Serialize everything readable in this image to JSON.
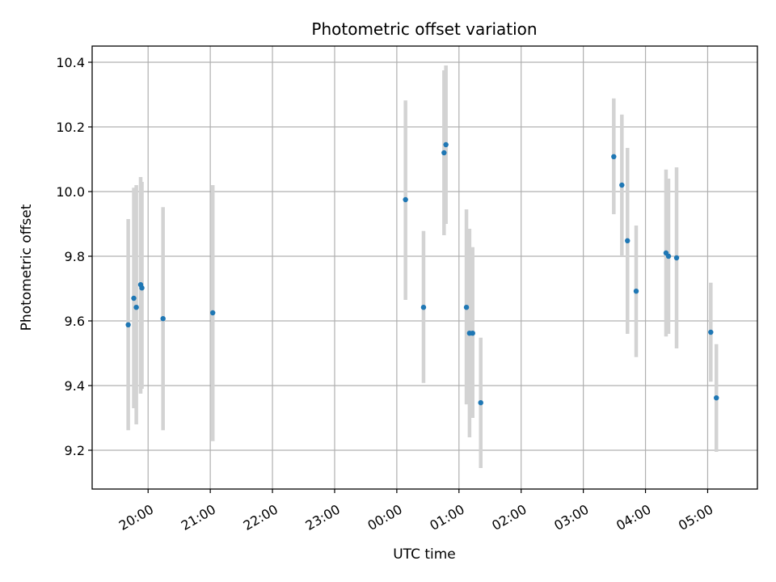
{
  "chart_data": {
    "type": "scatter",
    "title": "Photometric offset variation",
    "xlabel": "UTC time",
    "ylabel": "Photometric offset",
    "x_unit": "hours (UTC, continuing past midnight)",
    "xlim": [
      19.1,
      29.8
    ],
    "ylim": [
      9.08,
      10.45
    ],
    "grid": true,
    "x_ticks": [
      {
        "value": 20,
        "label": "20:00"
      },
      {
        "value": 21,
        "label": "21:00"
      },
      {
        "value": 22,
        "label": "22:00"
      },
      {
        "value": 23,
        "label": "23:00"
      },
      {
        "value": 24,
        "label": "00:00"
      },
      {
        "value": 25,
        "label": "01:00"
      },
      {
        "value": 26,
        "label": "02:00"
      },
      {
        "value": 27,
        "label": "03:00"
      },
      {
        "value": 28,
        "label": "04:00"
      },
      {
        "value": 29,
        "label": "05:00"
      }
    ],
    "y_ticks": [
      {
        "value": 9.2,
        "label": "9.2"
      },
      {
        "value": 9.4,
        "label": "9.4"
      },
      {
        "value": 9.6,
        "label": "9.6"
      },
      {
        "value": 9.8,
        "label": "9.8"
      },
      {
        "value": 10.0,
        "label": "10.0"
      },
      {
        "value": 10.2,
        "label": "10.2"
      },
      {
        "value": 10.4,
        "label": "10.4"
      }
    ],
    "colors": {
      "point": "#1f77b4",
      "errorbar": "#d3d3d3"
    },
    "points": [
      {
        "x": 19.68,
        "y": 9.588,
        "lo": 9.262,
        "hi": 9.915
      },
      {
        "x": 19.77,
        "y": 9.67,
        "lo": 9.33,
        "hi": 10.012
      },
      {
        "x": 19.81,
        "y": 9.642,
        "lo": 9.28,
        "hi": 10.02
      },
      {
        "x": 19.88,
        "y": 9.712,
        "lo": 9.375,
        "hi": 10.045
      },
      {
        "x": 19.9,
        "y": 9.702,
        "lo": 9.39,
        "hi": 10.03
      },
      {
        "x": 20.24,
        "y": 9.607,
        "lo": 9.262,
        "hi": 9.952
      },
      {
        "x": 21.04,
        "y": 9.625,
        "lo": 9.228,
        "hi": 10.02
      },
      {
        "x": 24.14,
        "y": 9.975,
        "lo": 9.665,
        "hi": 10.282
      },
      {
        "x": 24.43,
        "y": 9.642,
        "lo": 9.408,
        "hi": 9.878
      },
      {
        "x": 24.76,
        "y": 10.12,
        "lo": 9.865,
        "hi": 10.375
      },
      {
        "x": 24.79,
        "y": 10.145,
        "lo": 9.9,
        "hi": 10.39
      },
      {
        "x": 25.12,
        "y": 9.642,
        "lo": 9.342,
        "hi": 9.945
      },
      {
        "x": 25.17,
        "y": 9.562,
        "lo": 9.24,
        "hi": 9.885
      },
      {
        "x": 25.22,
        "y": 9.562,
        "lo": 9.3,
        "hi": 9.828
      },
      {
        "x": 25.35,
        "y": 9.347,
        "lo": 9.145,
        "hi": 9.548
      },
      {
        "x": 27.49,
        "y": 10.108,
        "lo": 9.93,
        "hi": 10.288
      },
      {
        "x": 27.62,
        "y": 10.02,
        "lo": 9.8,
        "hi": 10.238
      },
      {
        "x": 27.71,
        "y": 9.848,
        "lo": 9.56,
        "hi": 10.135
      },
      {
        "x": 27.85,
        "y": 9.692,
        "lo": 9.488,
        "hi": 9.895
      },
      {
        "x": 28.33,
        "y": 9.81,
        "lo": 9.552,
        "hi": 10.068
      },
      {
        "x": 28.37,
        "y": 9.8,
        "lo": 9.56,
        "hi": 10.04
      },
      {
        "x": 28.5,
        "y": 9.795,
        "lo": 9.515,
        "hi": 10.075
      },
      {
        "x": 29.05,
        "y": 9.565,
        "lo": 9.412,
        "hi": 9.718
      },
      {
        "x": 29.14,
        "y": 9.362,
        "lo": 9.195,
        "hi": 9.528
      }
    ]
  }
}
